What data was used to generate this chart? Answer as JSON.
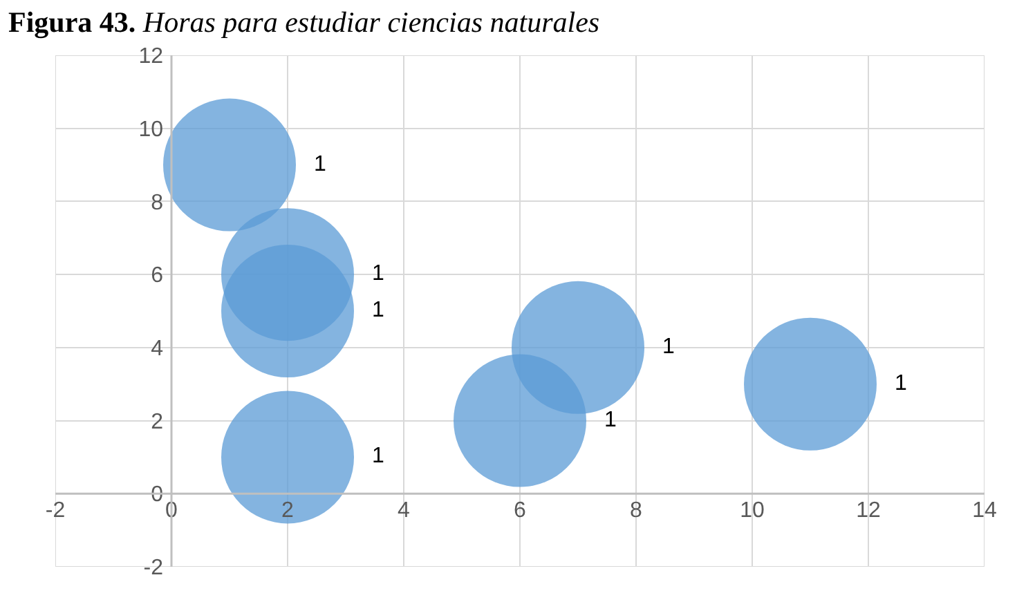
{
  "chart_data": {
    "type": "bubble",
    "title": "Figura 43. Horas para estudiar ciencias naturales",
    "x": [
      1,
      2,
      2,
      2,
      6,
      7,
      11
    ],
    "values": [
      9,
      6,
      5,
      1,
      2,
      4,
      3
    ],
    "sizes": [
      1,
      1,
      1,
      1,
      1,
      1,
      1
    ],
    "value_labels": [
      "1",
      "1",
      "1",
      "1",
      "1",
      "1",
      "1"
    ],
    "color": "#5b9bd5",
    "xlim": [
      -2,
      14
    ],
    "xticks": [
      -2,
      0,
      2,
      4,
      6,
      8,
      10,
      12,
      14
    ],
    "ylim": [
      -2,
      12
    ],
    "yticks": [
      -2,
      0,
      2,
      4,
      6,
      8,
      10,
      12
    ],
    "grid": true
  }
}
